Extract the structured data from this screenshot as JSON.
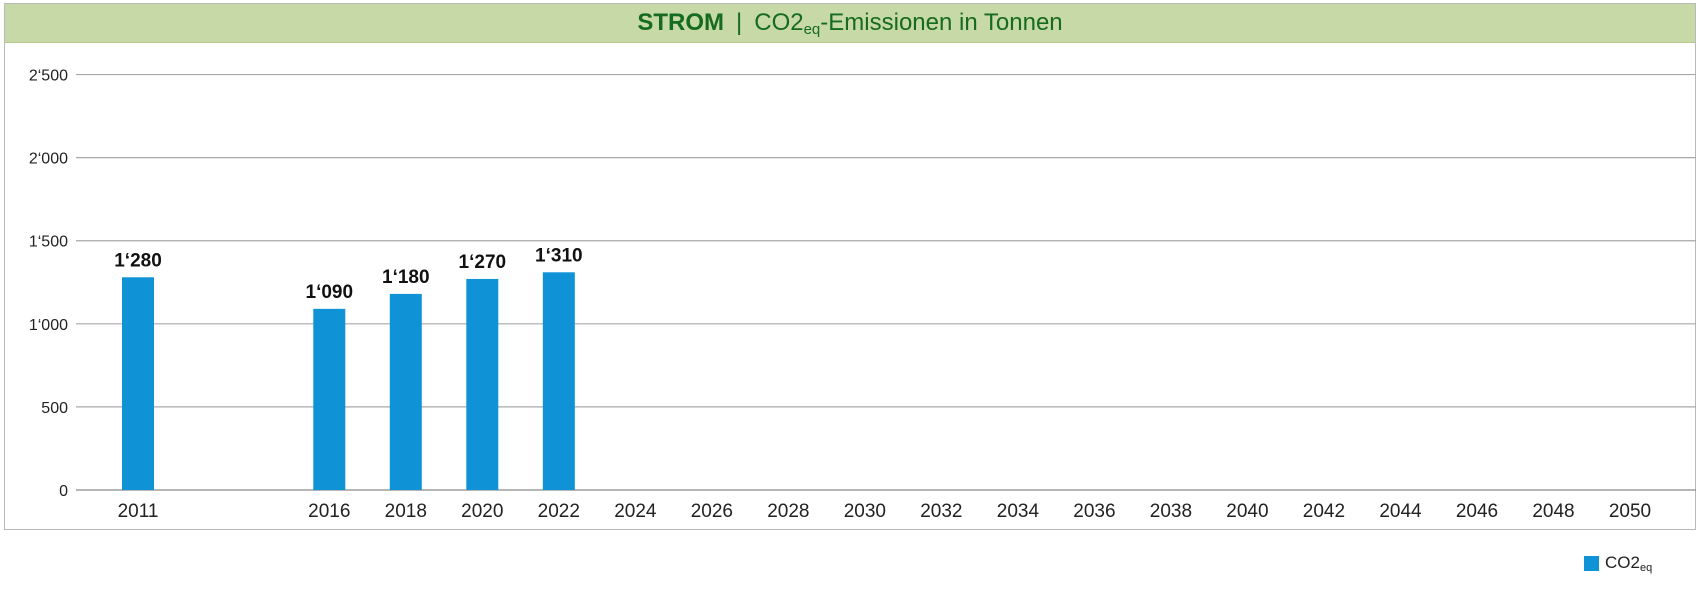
{
  "title": {
    "bold": "STROM",
    "separator": "|",
    "main": "CO2",
    "sub": "eq",
    "rest": "-Emissionen in Tonnen"
  },
  "legend": {
    "label": "CO2",
    "sub": "eq"
  },
  "colors": {
    "bar": "#0f93d6",
    "title_bg": "#c8d9a8",
    "title_text": "#156b1f",
    "grid": "#a8a8a8"
  },
  "chart_data": {
    "type": "bar",
    "title": "STROM | CO2eq-Emissionen in Tonnen",
    "xlabel": "",
    "ylabel": "",
    "ylim": [
      0,
      2750
    ],
    "yticks": [
      0,
      500,
      1000,
      1500,
      2000,
      2500
    ],
    "ytick_labels": [
      "0",
      "500",
      "1‘000",
      "1‘500",
      "2‘000",
      "2‘500"
    ],
    "categories": [
      "2011",
      "2016",
      "2018",
      "2020",
      "2022",
      "2024",
      "2026",
      "2028",
      "2030",
      "2032",
      "2034",
      "2036",
      "2038",
      "2040",
      "2042",
      "2044",
      "2046",
      "2048",
      "2050"
    ],
    "series": [
      {
        "name": "CO2eq",
        "values": [
          1280,
          1090,
          1180,
          1270,
          1310,
          null,
          null,
          null,
          null,
          null,
          null,
          null,
          null,
          null,
          null,
          null,
          null,
          null,
          null
        ],
        "labels": [
          "1‘280",
          "1‘090",
          "1‘180",
          "1‘270",
          "1‘310",
          "",
          "",
          "",
          "",
          "",
          "",
          "",
          "",
          "",
          "",
          "",
          "",
          "",
          ""
        ]
      }
    ],
    "grid": true,
    "legend_position": "bottom-right"
  }
}
